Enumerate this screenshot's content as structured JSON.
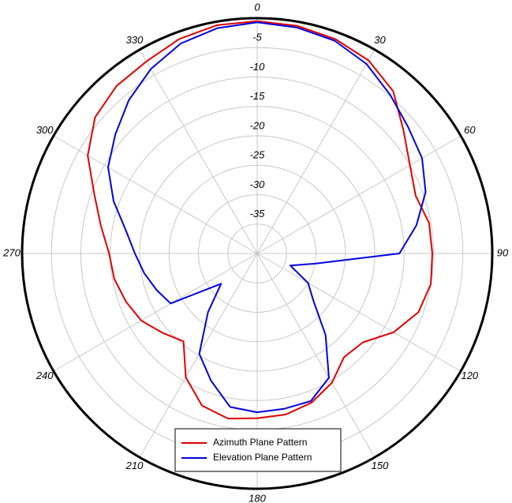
{
  "chart_data": {
    "type": "polar",
    "x": [
      0,
      10,
      20,
      30,
      40,
      50,
      60,
      70,
      80,
      90,
      100,
      110,
      120,
      130,
      140,
      150,
      160,
      170,
      180,
      190,
      200,
      210,
      220,
      230,
      240,
      250,
      260,
      270,
      280,
      290,
      300,
      310,
      320,
      330,
      340,
      350
    ],
    "series": [
      {
        "name": "Azimuth Plane Pattern",
        "color": "#e00000",
        "values": [
          -0.5,
          -0.7,
          -1.2,
          -2.1,
          -4,
          -7.5,
          -10,
          -11.3,
          -10.3,
          -10.2,
          -10,
          -10.8,
          -13.2,
          -16.5,
          -17,
          -14.6,
          -13,
          -12.2,
          -12,
          -11.5,
          -12.5,
          -15.7,
          -20.5,
          -19,
          -17.2,
          -16.2,
          -15.3,
          -14.8,
          -13,
          -10.5,
          -6.7,
          -4,
          -2.8,
          -2.3,
          -1.2,
          -0.6
        ]
      },
      {
        "name": "Elevation Plane Pattern",
        "color": "#0000e0",
        "values": [
          -0.7,
          -1,
          -1.5,
          -2.8,
          -4.8,
          -6.5,
          -7.6,
          -9.5,
          -12.5,
          -15.8,
          -30,
          -34,
          -30,
          -27.5,
          -21.9,
          -15.6,
          -13.3,
          -13.2,
          -13,
          -13.5,
          -17,
          -20.3,
          -27,
          -32,
          -23,
          -21.8,
          -20.5,
          -19.2,
          -17.3,
          -14,
          -10.7,
          -8.5,
          -6,
          -3.8,
          -2,
          -1.1
        ]
      }
    ],
    "rlim": [
      -40,
      0
    ],
    "rticks": [
      -35,
      -30,
      -25,
      -20,
      -15,
      -10,
      -5
    ],
    "thetaticks": [
      0,
      30,
      60,
      90,
      120,
      150,
      180,
      210,
      240,
      270,
      300,
      330
    ],
    "grid": true
  }
}
